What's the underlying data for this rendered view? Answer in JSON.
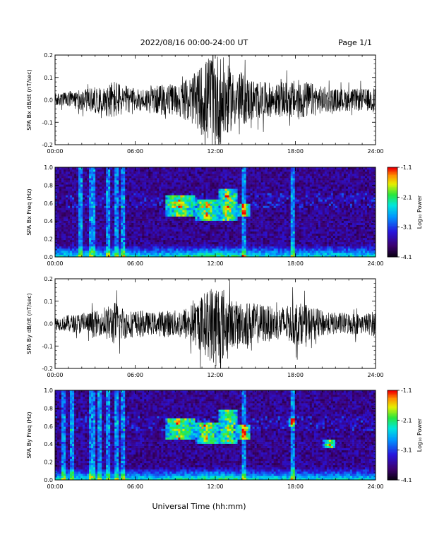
{
  "header": {
    "date_range": "2022/08/16  00:00-24:00 UT",
    "page": "Page 1/1"
  },
  "x_axis_title": "Universal Time (hh:mm)",
  "chart_data": [
    {
      "type": "line",
      "id": "bx-waveform",
      "ylabel": "SPA Bx dB/dt (nT/sec)",
      "x_ticks": [
        "00:00",
        "06:00",
        "12:00",
        "18:00",
        "24:00"
      ],
      "xlim": [
        0,
        24
      ],
      "ylim": [
        -0.2,
        0.2
      ],
      "y_ticks": [
        "-0.2",
        "-0.1",
        "0.0",
        "0.1",
        "0.2"
      ],
      "envelope": {
        "hours": [
          0,
          0.5,
          1,
          1.5,
          2,
          2.5,
          3,
          3.5,
          4,
          4.5,
          5,
          5.5,
          6,
          6.5,
          7,
          7.5,
          8,
          8.5,
          9,
          9.5,
          10,
          10.5,
          11,
          11.5,
          12,
          12.5,
          13,
          13.5,
          14,
          14.5,
          15,
          15.5,
          16,
          16.5,
          17,
          17.5,
          18,
          18.5,
          19,
          19.5,
          20,
          20.5,
          21,
          21.5,
          22,
          22.5,
          23,
          23.5,
          24
        ],
        "amplitude": [
          0.03,
          0.03,
          0.04,
          0.04,
          0.05,
          0.05,
          0.06,
          0.05,
          0.08,
          0.09,
          0.07,
          0.06,
          0.05,
          0.05,
          0.06,
          0.06,
          0.07,
          0.07,
          0.07,
          0.08,
          0.1,
          0.12,
          0.16,
          0.2,
          0.22,
          0.2,
          0.15,
          0.12,
          0.12,
          0.1,
          0.09,
          0.08,
          0.08,
          0.07,
          0.08,
          0.08,
          0.09,
          0.09,
          0.08,
          0.07,
          0.06,
          0.06,
          0.05,
          0.05,
          0.05,
          0.05,
          0.05,
          0.05,
          0.06
        ]
      }
    },
    {
      "type": "heatmap",
      "id": "bx-spectrogram",
      "ylabel": "SPA Bx Freq (Hz)",
      "x_ticks": [
        "00:00",
        "06:00",
        "12:00",
        "18:00",
        "24:00"
      ],
      "xlim": [
        0,
        24
      ],
      "ylim": [
        0,
        1.0
      ],
      "y_ticks": [
        "0.0",
        "0.2",
        "0.4",
        "0.6",
        "0.8",
        "1.0"
      ],
      "colorbar": {
        "label": "Log₁₀ Power",
        "ticks": [
          "-1.1",
          "-2.1",
          "-3.1",
          "-4.1"
        ],
        "range": [
          -4.1,
          -1.1
        ]
      },
      "features": {
        "bursts": [
          {
            "hours": [
              8.2,
              10.5
            ],
            "freq": [
              0.45,
              0.7
            ]
          },
          {
            "hours": [
              10.5,
              12.3
            ],
            "freq": [
              0.4,
              0.65
            ]
          },
          {
            "hours": [
              12.3,
              13.6
            ],
            "freq": [
              0.4,
              0.75
            ]
          },
          {
            "hours": [
              13.6,
              14.7
            ],
            "freq": [
              0.45,
              0.6
            ]
          }
        ],
        "vertical_streaks_hours": [
          1.9,
          2.8,
          4.0,
          4.6,
          5.1,
          14.1,
          17.8
        ]
      }
    },
    {
      "type": "line",
      "id": "by-waveform",
      "ylabel": "SPA By dB/dt (nT/sec)",
      "x_ticks": [
        "00:00",
        "06:00",
        "12:00",
        "18:00",
        "24:00"
      ],
      "xlim": [
        0,
        24
      ],
      "ylim": [
        -0.2,
        0.2
      ],
      "y_ticks": [
        "-0.2",
        "-0.1",
        "0.0",
        "0.1",
        "0.2"
      ],
      "envelope": {
        "hours": [
          0,
          0.5,
          1,
          1.5,
          2,
          2.5,
          3,
          3.5,
          4,
          4.5,
          5,
          5.5,
          6,
          6.5,
          7,
          7.5,
          8,
          8.5,
          9,
          9.5,
          10,
          10.5,
          11,
          11.5,
          12,
          12.5,
          13,
          13.5,
          14,
          14.5,
          15,
          15.5,
          16,
          16.5,
          17,
          17.5,
          18,
          18.5,
          19,
          19.5,
          20,
          20.5,
          21,
          21.5,
          22,
          22.5,
          23,
          23.5,
          24
        ],
        "amplitude": [
          0.03,
          0.03,
          0.04,
          0.04,
          0.05,
          0.05,
          0.06,
          0.05,
          0.08,
          0.1,
          0.08,
          0.06,
          0.06,
          0.06,
          0.05,
          0.05,
          0.06,
          0.06,
          0.06,
          0.07,
          0.08,
          0.1,
          0.13,
          0.16,
          0.2,
          0.18,
          0.12,
          0.1,
          0.1,
          0.1,
          0.09,
          0.09,
          0.08,
          0.07,
          0.08,
          0.08,
          0.1,
          0.09,
          0.08,
          0.07,
          0.06,
          0.05,
          0.05,
          0.05,
          0.05,
          0.05,
          0.04,
          0.05,
          0.06
        ]
      }
    },
    {
      "type": "heatmap",
      "id": "by-spectrogram",
      "ylabel": "SPA By Freq (Hz)",
      "x_ticks": [
        "00:00",
        "06:00",
        "12:00",
        "18:00",
        "24:00"
      ],
      "xlim": [
        0,
        24
      ],
      "ylim": [
        0,
        1.0
      ],
      "y_ticks": [
        "0.0",
        "0.2",
        "0.4",
        "0.6",
        "0.8",
        "1.0"
      ],
      "colorbar": {
        "label": "Log₁₀ Power",
        "ticks": [
          "-1.1",
          "-2.1",
          "-3.1",
          "-4.1"
        ],
        "range": [
          -4.1,
          -1.1
        ]
      },
      "features": {
        "bursts": [
          {
            "hours": [
              8.2,
              10.5
            ],
            "freq": [
              0.45,
              0.7
            ]
          },
          {
            "hours": [
              10.5,
              12.3
            ],
            "freq": [
              0.4,
              0.65
            ]
          },
          {
            "hours": [
              12.3,
              13.6
            ],
            "freq": [
              0.4,
              0.78
            ]
          },
          {
            "hours": [
              13.6,
              14.7
            ],
            "freq": [
              0.45,
              0.62
            ]
          },
          {
            "hours": [
              17.5,
              18.0
            ],
            "freq": [
              0.6,
              0.7
            ]
          },
          {
            "hours": [
              20.1,
              21.0
            ],
            "freq": [
              0.35,
              0.45
            ]
          }
        ],
        "vertical_streaks_hours": [
          0.6,
          1.3,
          2.8,
          3.3,
          4.0,
          4.6,
          5.1,
          14.1,
          17.8
        ]
      }
    }
  ]
}
